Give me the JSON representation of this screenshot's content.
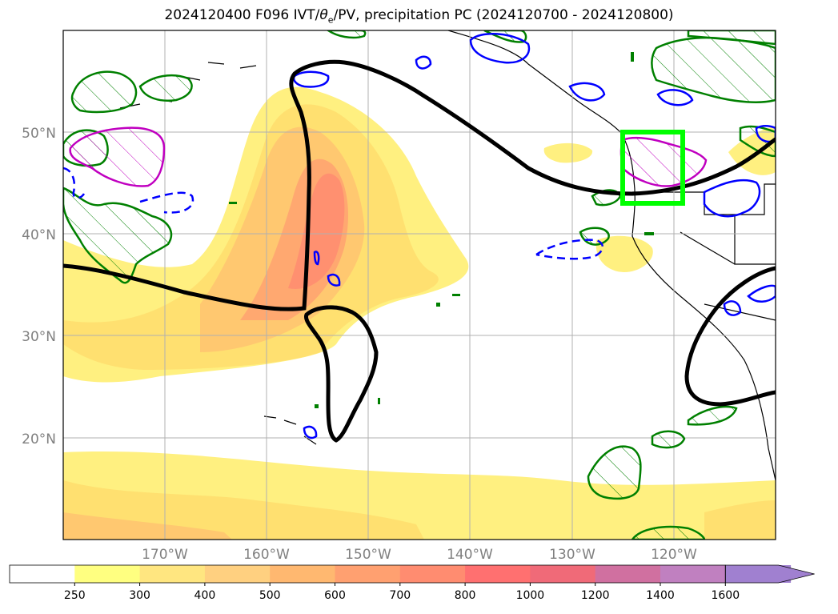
{
  "title": {
    "prefix": "2024120400 F096 IVT/",
    "theta": "θ",
    "theta_sub": "e",
    "suffix": "/PV, precipitation PC (2024120700 - 2024120800)"
  },
  "map": {
    "projection": "equirectangular",
    "lon_range": [
      -180,
      -110
    ],
    "lat_range": [
      10,
      60
    ],
    "gridlines": true,
    "lat_labels": [
      "20°N",
      "30°N",
      "40°N",
      "50°N"
    ],
    "lon_labels": [
      "170°W",
      "160°W",
      "150°W",
      "140°W",
      "130°W",
      "120°W"
    ],
    "highlight_box": {
      "lon": [
        -125,
        -119
      ],
      "lat": [
        43,
        50
      ],
      "color": "#00ff00"
    }
  },
  "colorbar": {
    "levels": [
      "250",
      "300",
      "400",
      "500",
      "600",
      "700",
      "800",
      "1000",
      "1200",
      "1400",
      "1600"
    ],
    "colors": [
      "#ffffff",
      "#ffff80",
      "#ffe680",
      "#ffd080",
      "#ffb870",
      "#ffa070",
      "#ff8c70",
      "#ff7070",
      "#f06a78",
      "#d070a0",
      "#c080c0",
      "#a080d0"
    ],
    "extend": "max"
  },
  "legend_colors": {
    "contour_black": "#000000",
    "contour_blue": "#0000ff",
    "contour_green": "#008000",
    "contour_magenta": "#c000c0"
  }
}
